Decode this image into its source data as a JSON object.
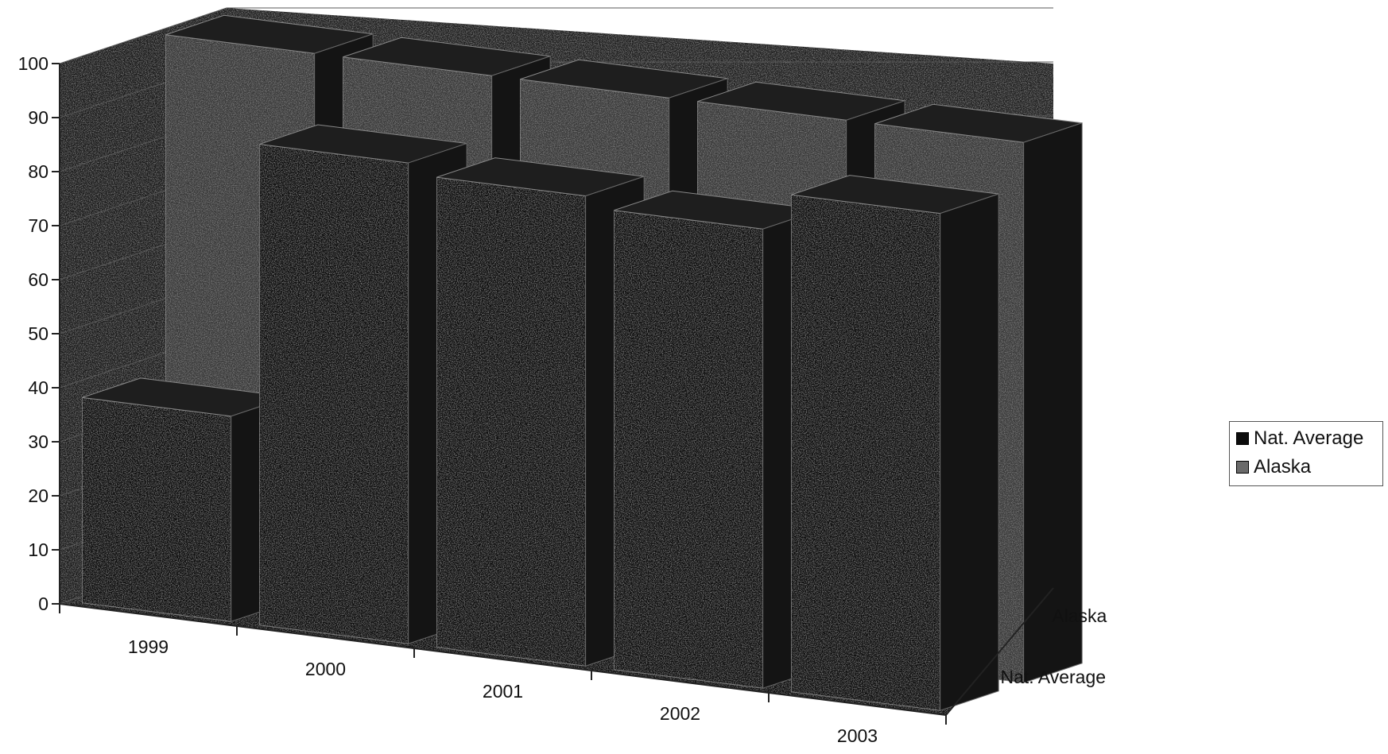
{
  "chart_data": {
    "type": "bar",
    "variant": "3d-column",
    "categories": [
      "1999",
      "2000",
      "2001",
      "2002",
      "2003"
    ],
    "series": [
      {
        "name": "Nat. Average",
        "values": [
          38,
          89,
          87,
          85,
          92
        ],
        "color": "#0c0c0c"
      },
      {
        "name": "Alaska",
        "values": [
          100,
          100,
          100,
          100,
          100
        ],
        "color": "#3a3a3a"
      }
    ],
    "depth_labels": [
      "Alaska",
      "Nat. Average"
    ],
    "y_ticks": [
      "0",
      "10",
      "20",
      "30",
      "40",
      "50",
      "60",
      "70",
      "80",
      "90",
      "100"
    ],
    "ylim": [
      0,
      100
    ],
    "grid": true,
    "legend_position": "right"
  },
  "legend": {
    "items": [
      {
        "label": "Nat. Average",
        "color": "#0c0c0c"
      },
      {
        "label": "Alaska",
        "color": "#6a6a6a"
      }
    ]
  }
}
